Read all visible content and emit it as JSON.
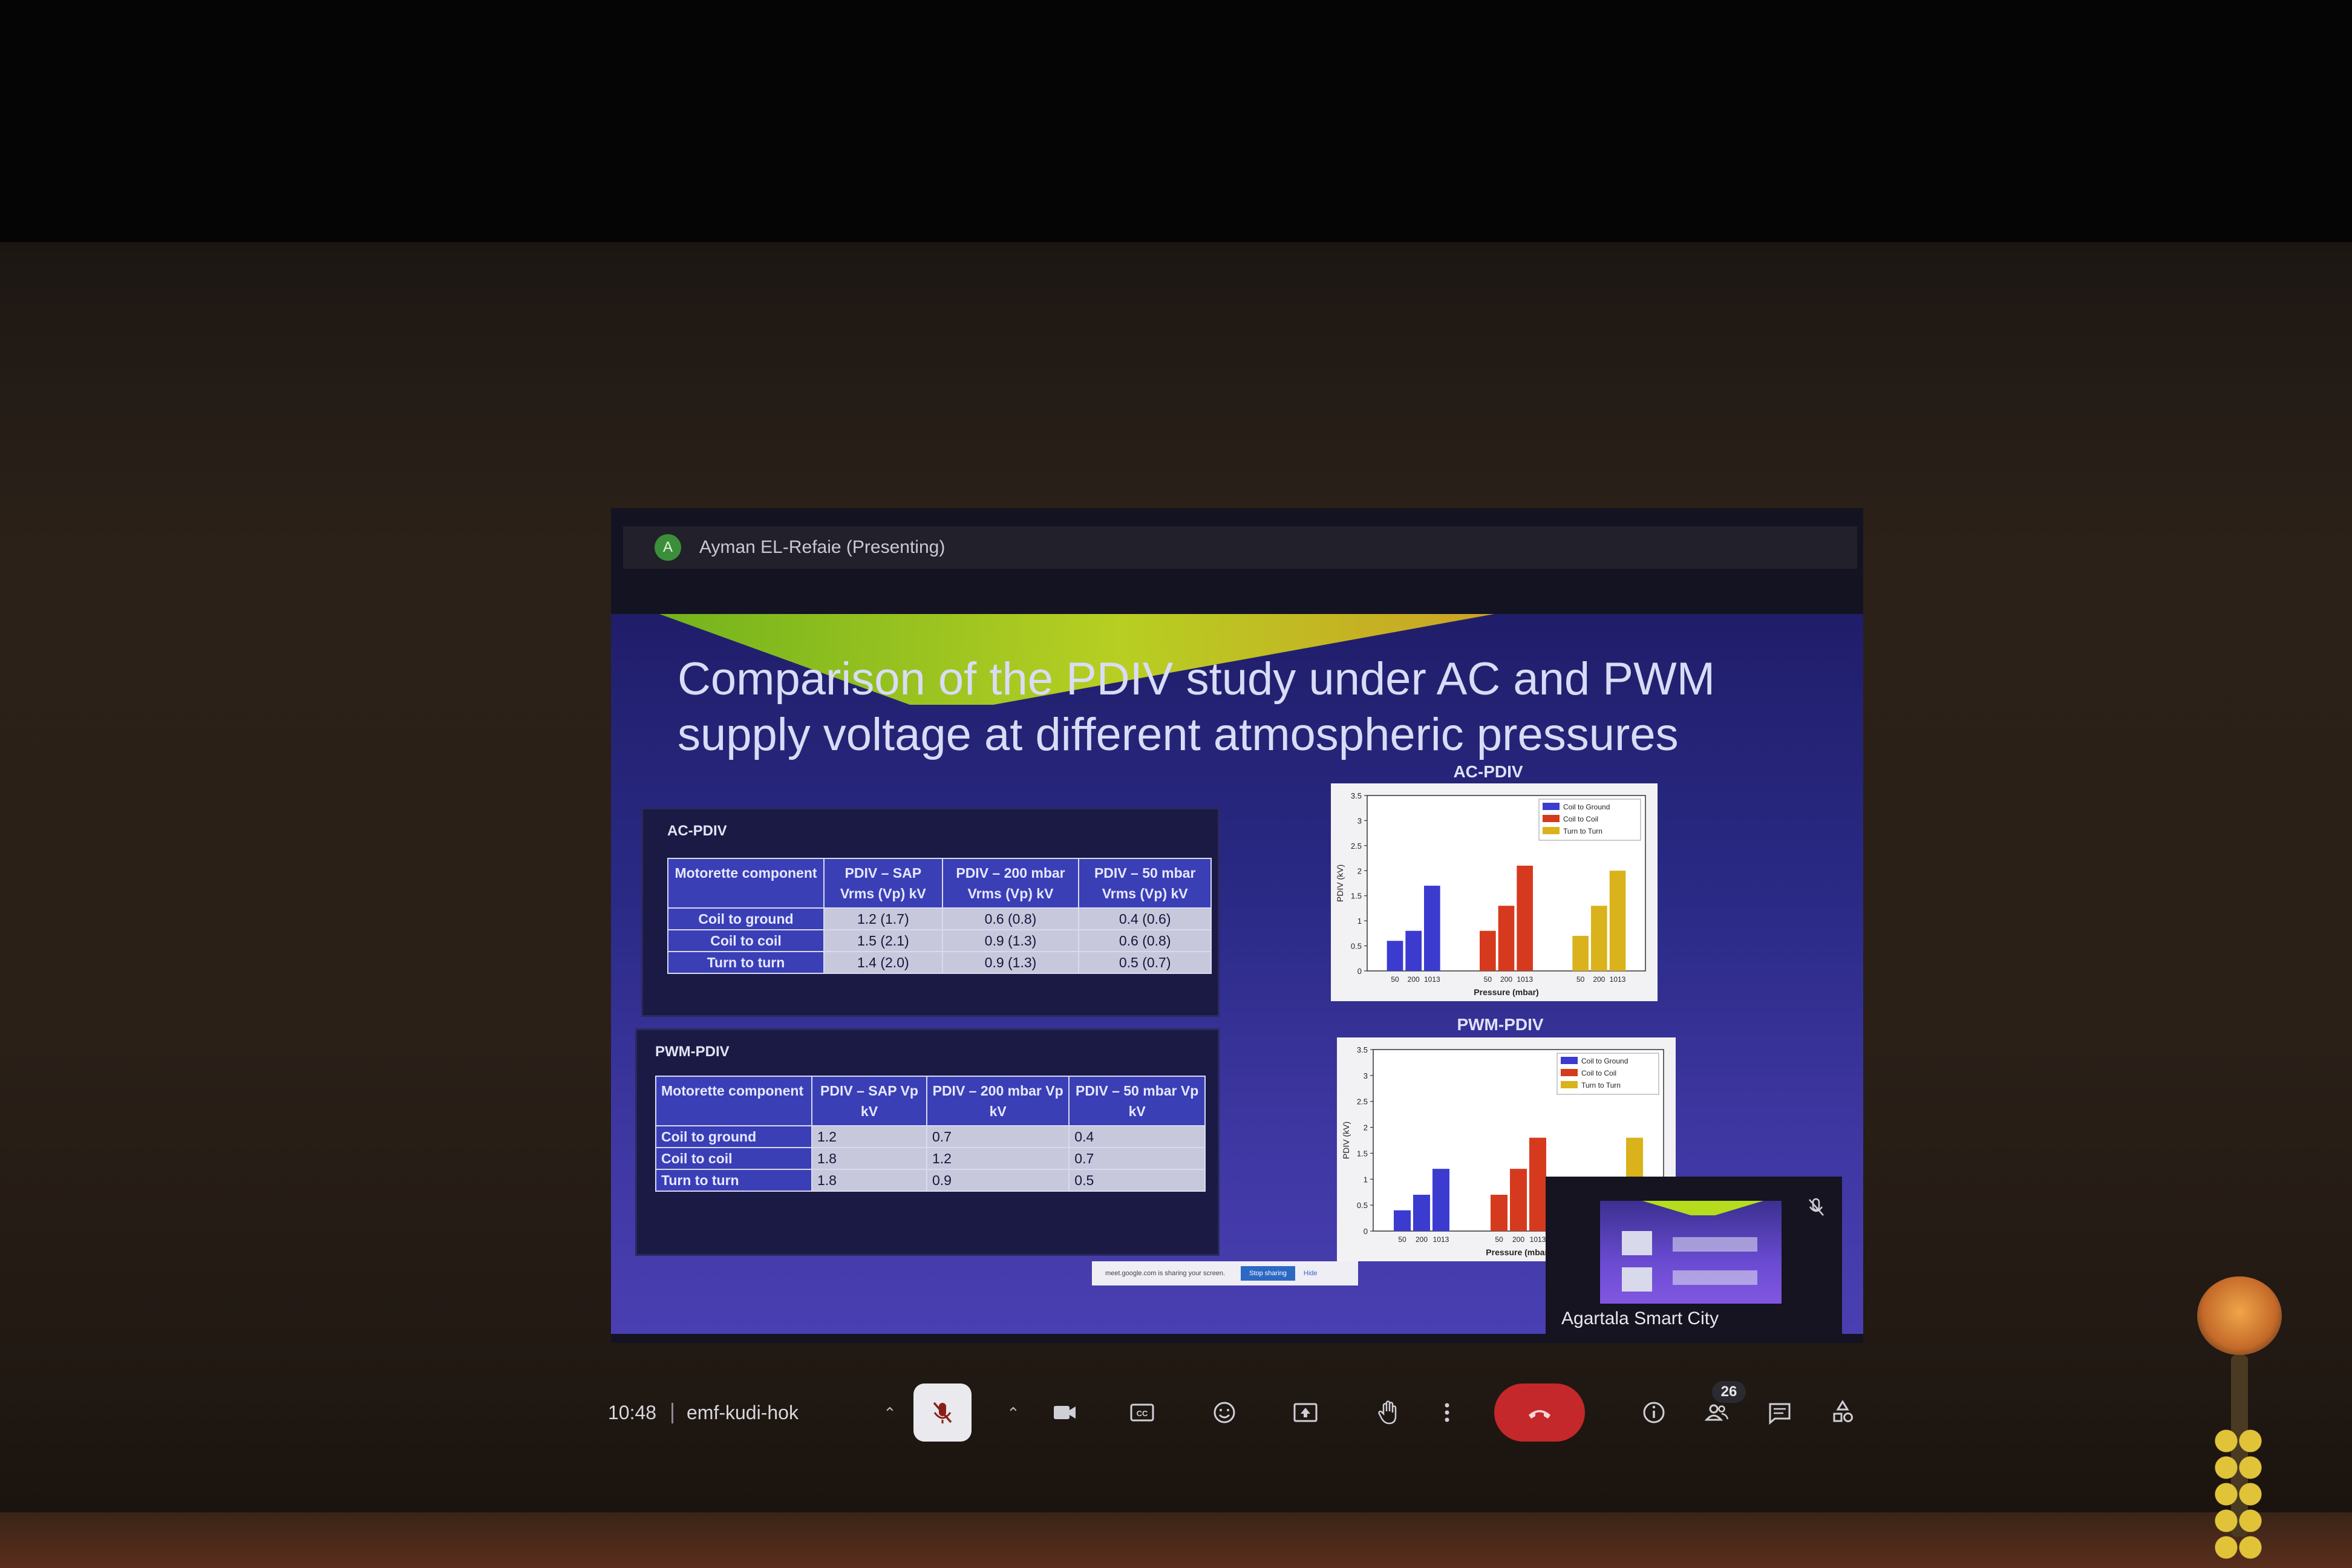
{
  "presenter": {
    "avatar_initial": "A",
    "name": "Ayman EL-Refaie (Presenting)"
  },
  "slide": {
    "title_line1": "Comparison of the PDIV study under AC and PWM",
    "title_line2": "supply voltage at different atmospheric pressures",
    "ac_table": {
      "label": "AC-PDIV",
      "headers": [
        "Motorette component",
        "PDIV – SAP Vrms (Vp) kV",
        "PDIV – 200 mbar Vrms (Vp) kV",
        "PDIV – 50 mbar Vrms (Vp) kV"
      ],
      "rows": [
        [
          "Coil to ground",
          "1.2 (1.7)",
          "0.6 (0.8)",
          "0.4 (0.6)"
        ],
        [
          "Coil to coil",
          "1.5 (2.1)",
          "0.9 (1.3)",
          "0.6 (0.8)"
        ],
        [
          "Turn to turn",
          "1.4 (2.0)",
          "0.9 (1.3)",
          "0.5 (0.7)"
        ]
      ]
    },
    "pwm_table": {
      "label": "PWM-PDIV",
      "headers": [
        "Motorette component",
        "PDIV – SAP Vp kV",
        "PDIV – 200 mbar Vp kV",
        "PDIV – 50 mbar Vp kV"
      ],
      "rows": [
        [
          "Coil to ground",
          "1.2",
          "0.7",
          "0.4"
        ],
        [
          "Coil to coil",
          "1.8",
          "1.2",
          "0.7"
        ],
        [
          "Turn to turn",
          "1.8",
          "0.9",
          "0.5"
        ]
      ]
    },
    "share_notice": {
      "text": "meet.google.com is sharing your screen.",
      "stop": "Stop sharing",
      "hide": "Hide"
    }
  },
  "chart_data": [
    {
      "type": "bar",
      "title": "AC-PDIV",
      "xlabel": "Pressure (mbar)",
      "ylabel": "PDIV (kV)",
      "ylim": [
        0,
        3.5
      ],
      "yticks": [
        "0",
        "0.5",
        "1",
        "1.5",
        "2",
        "2.5",
        "3",
        "3.5"
      ],
      "categories": [
        "50",
        "200",
        "1013"
      ],
      "series": [
        {
          "name": "Coil to Ground",
          "color": "#3b3bd0",
          "values": [
            0.6,
            0.8,
            1.7
          ]
        },
        {
          "name": "Coil to Coil",
          "color": "#d63a1e",
          "values": [
            0.8,
            1.3,
            2.1
          ]
        },
        {
          "name": "Turn to Turn",
          "color": "#d9b21c",
          "values": [
            0.7,
            1.3,
            2.0
          ]
        }
      ],
      "legend": "top-right"
    },
    {
      "type": "bar",
      "title": "PWM-PDIV",
      "xlabel": "Pressure (mbar)",
      "ylabel": "PDIV (kV)",
      "ylim": [
        0,
        3.5
      ],
      "yticks": [
        "0",
        "0.5",
        "1",
        "1.5",
        "2",
        "2.5",
        "3",
        "3.5"
      ],
      "categories": [
        "50",
        "200",
        "1013"
      ],
      "series": [
        {
          "name": "Coil to Ground",
          "color": "#3b3bd0",
          "values": [
            0.4,
            0.7,
            1.2
          ]
        },
        {
          "name": "Coil to Coil",
          "color": "#d63a1e",
          "values": [
            0.7,
            1.2,
            1.8
          ]
        },
        {
          "name": "Turn to Turn",
          "color": "#d9b21c",
          "values": [
            0.5,
            0.9,
            1.8
          ]
        }
      ],
      "legend": "top-right"
    }
  ],
  "self_view": {
    "name": "Agartala Smart City"
  },
  "toolbar": {
    "time": "10:48",
    "meeting_code": "emf-kudi-hok",
    "participants_count": "26",
    "icons": [
      "chevron-up-icon",
      "mic-off-icon",
      "chevron-up-icon",
      "camera-icon",
      "captions-icon",
      "emoji-icon",
      "present-icon",
      "raise-hand-icon",
      "more-options-icon",
      "end-call-icon",
      "info-icon",
      "people-icon",
      "chat-icon",
      "activities-icon"
    ]
  }
}
